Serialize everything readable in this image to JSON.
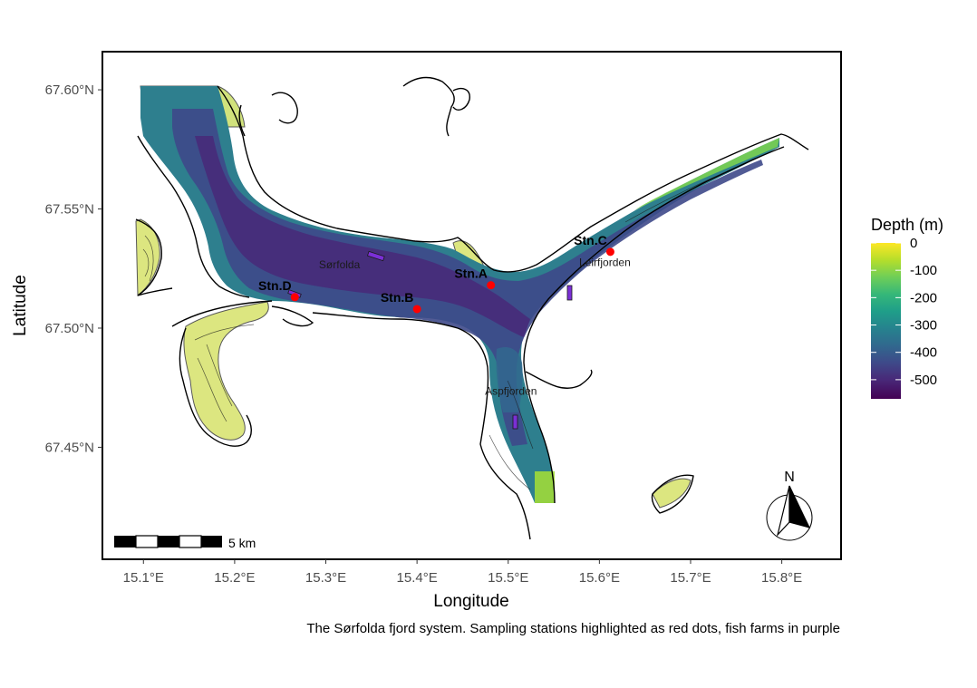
{
  "map": {
    "x_axis": {
      "title": "Longitude",
      "ticks": [
        "15.1°E",
        "15.2°E",
        "15.3°E",
        "15.4°E",
        "15.5°E",
        "15.6°E",
        "15.7°E",
        "15.8°E"
      ],
      "values": [
        15.1,
        15.2,
        15.3,
        15.4,
        15.5,
        15.6,
        15.7,
        15.8
      ],
      "range": [
        15.055,
        15.865
      ]
    },
    "y_axis": {
      "title": "Latitude",
      "ticks": [
        "67.60°N",
        "67.55°N",
        "67.50°N",
        "67.45°N"
      ],
      "values": [
        67.6,
        67.55,
        67.5,
        67.45
      ],
      "range": [
        67.403,
        67.616
      ]
    },
    "stations": [
      {
        "label": "Stn.A",
        "lon": 15.481,
        "lat": 67.518
      },
      {
        "label": "Stn.B",
        "lon": 15.4,
        "lat": 67.508
      },
      {
        "label": "Stn.C",
        "lon": 15.612,
        "lat": 67.532
      },
      {
        "label": "Stn.D",
        "lon": 15.266,
        "lat": 67.513
      }
    ],
    "place_names": [
      {
        "label": "Sørfolda",
        "lon": 15.315,
        "lat": 67.525
      },
      {
        "label": "Leirfjorden",
        "lon": 15.606,
        "lat": 67.526
      },
      {
        "label": "Aspfjorden",
        "lon": 15.503,
        "lat": 67.472
      }
    ],
    "legend": {
      "title": "Depth (m)",
      "ticks": [
        "0",
        "-100",
        "-200",
        "-300",
        "-400",
        "-500"
      ],
      "values": [
        0,
        -100,
        -200,
        -300,
        -400,
        -500
      ],
      "range": [
        0,
        -570
      ],
      "colors": [
        "#fde725",
        "#b5de2b",
        "#6ece58",
        "#35b779",
        "#1f9e89",
        "#26828e",
        "#31688e",
        "#3e4989",
        "#482878",
        "#440154"
      ]
    },
    "scale_bar": {
      "label": "5 km"
    },
    "north_arrow": {
      "label": "N"
    },
    "colors": {
      "station": "#ff0000",
      "fish_farm": "#7b2fd6",
      "land_outline": "#000000",
      "sand": "#fdf3b4"
    }
  },
  "caption": "The Sørfolda fjord system. Sampling stations highlighted as red dots, fish farms in purple"
}
